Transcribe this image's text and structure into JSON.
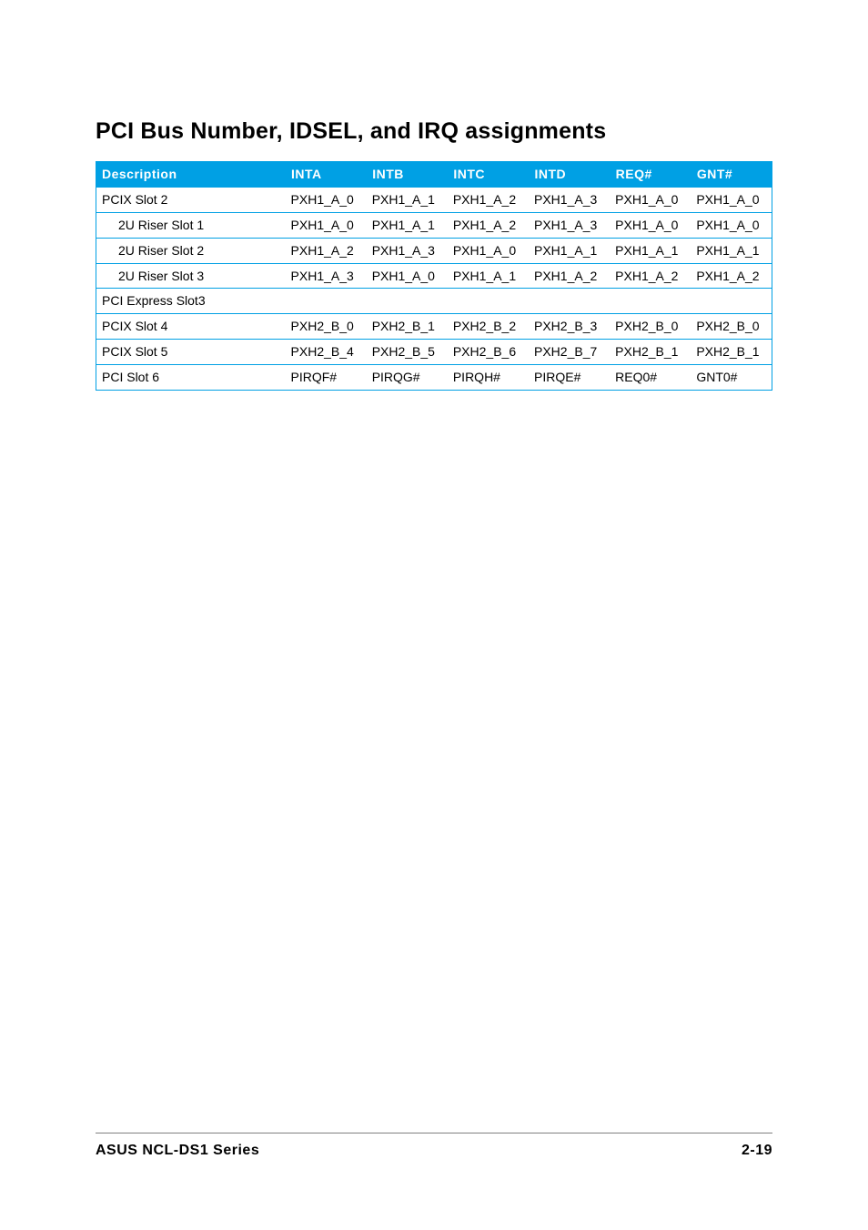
{
  "title": "PCI Bus Number, IDSEL, and IRQ assignments",
  "footer": {
    "left": "ASUS NCL-DS1 Series",
    "right": "2-19"
  },
  "table": {
    "type": "table",
    "header_bg": "#00a0e4",
    "header_fg": "#ffffff",
    "border_color": "#00a0e4",
    "columns": [
      {
        "key": "desc",
        "label": "Description",
        "width_pct": 28
      },
      {
        "key": "inta",
        "label": "INTA",
        "width_pct": 12
      },
      {
        "key": "intb",
        "label": "INTB",
        "width_pct": 12
      },
      {
        "key": "intc",
        "label": "INTC",
        "width_pct": 12
      },
      {
        "key": "intd",
        "label": "INTD",
        "width_pct": 12
      },
      {
        "key": "req",
        "label": "REQ#",
        "width_pct": 12
      },
      {
        "key": "gnt",
        "label": "GNT#",
        "width_pct": 12
      }
    ],
    "rows": [
      {
        "indent": false,
        "cells": [
          "PCIX Slot 2",
          "PXH1_A_0",
          "PXH1_A_1",
          "PXH1_A_2",
          "PXH1_A_3",
          "PXH1_A_0",
          "PXH1_A_0"
        ]
      },
      {
        "indent": true,
        "cells": [
          "2U Riser Slot 1",
          "PXH1_A_0",
          "PXH1_A_1",
          "PXH1_A_2",
          "PXH1_A_3",
          "PXH1_A_0",
          "PXH1_A_0"
        ]
      },
      {
        "indent": true,
        "cells": [
          "2U Riser Slot 2",
          "PXH1_A_2",
          "PXH1_A_3",
          "PXH1_A_0",
          "PXH1_A_1",
          "PXH1_A_1",
          "PXH1_A_1"
        ]
      },
      {
        "indent": true,
        "cells": [
          "2U Riser Slot 3",
          "PXH1_A_3",
          "PXH1_A_0",
          "PXH1_A_1",
          "PXH1_A_2",
          "PXH1_A_2",
          "PXH1_A_2"
        ]
      },
      {
        "indent": false,
        "cells": [
          "PCI Express Slot3",
          "",
          "",
          "",
          "",
          "",
          ""
        ]
      },
      {
        "indent": false,
        "cells": [
          "PCIX Slot 4",
          "PXH2_B_0",
          "PXH2_B_1",
          "PXH2_B_2",
          "PXH2_B_3",
          "PXH2_B_0",
          "PXH2_B_0"
        ]
      },
      {
        "indent": false,
        "cells": [
          "PCIX Slot 5",
          "PXH2_B_4",
          "PXH2_B_5",
          "PXH2_B_6",
          "PXH2_B_7",
          "PXH2_B_1",
          "PXH2_B_1"
        ]
      },
      {
        "indent": false,
        "cells": [
          "PCI Slot 6",
          "PIRQF#",
          "PIRQG#",
          "PIRQH#",
          "PIRQE#",
          "REQ0#",
          "GNT0#"
        ]
      }
    ]
  }
}
